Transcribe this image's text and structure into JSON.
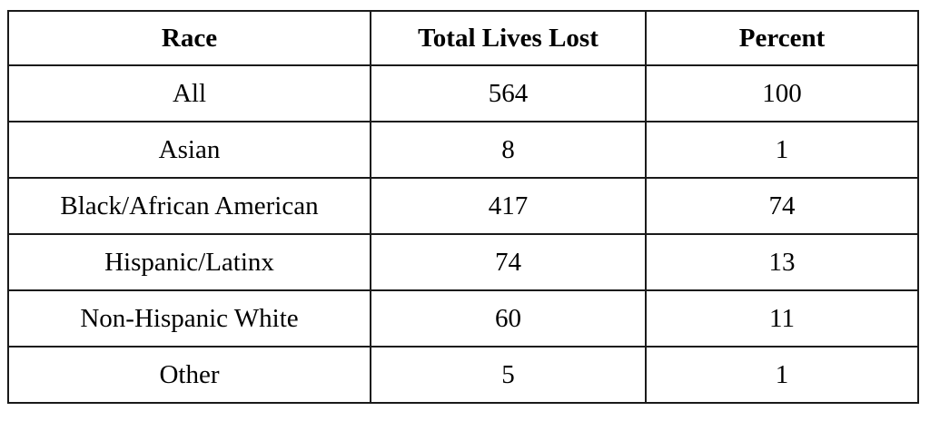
{
  "chart_data": {
    "type": "table",
    "title": "",
    "columns": [
      "Race",
      "Total Lives Lost",
      "Percent"
    ],
    "rows": [
      {
        "race": "All",
        "total_lives_lost": 564,
        "percent": 100
      },
      {
        "race": "Asian",
        "total_lives_lost": 8,
        "percent": 1
      },
      {
        "race": "Black/African American",
        "total_lives_lost": 417,
        "percent": 74
      },
      {
        "race": "Hispanic/Latinx",
        "total_lives_lost": 74,
        "percent": 13
      },
      {
        "race": "Non-Hispanic White",
        "total_lives_lost": 60,
        "percent": 11
      },
      {
        "race": "Other",
        "total_lives_lost": 5,
        "percent": 1
      }
    ]
  },
  "table": {
    "headers": [
      "Race",
      "Total Lives Lost",
      "Percent"
    ],
    "rows": [
      [
        "All",
        "564",
        "100"
      ],
      [
        "Asian",
        "8",
        "1"
      ],
      [
        "Black/African American",
        "417",
        "74"
      ],
      [
        "Hispanic/Latinx",
        "74",
        "13"
      ],
      [
        "Non-Hispanic White",
        "60",
        "11"
      ],
      [
        "Other",
        "5",
        "1"
      ]
    ]
  },
  "colors": {
    "border": "#1a1a1a",
    "text": "#000000",
    "background": "#ffffff"
  }
}
